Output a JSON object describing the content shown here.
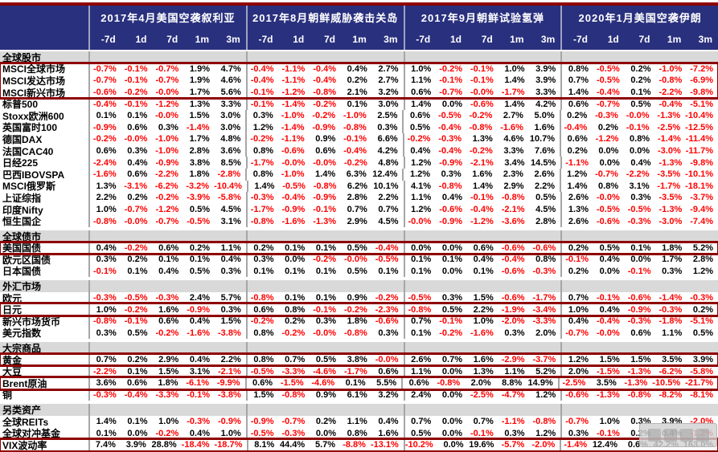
{
  "colors": {
    "header_bg": "#29307e",
    "header_text": "#ffffff",
    "highlight_border": "#8e0000",
    "top_bar": "#8e0000",
    "negative_value": "#ff0000",
    "positive_value": "#000000",
    "section_row_bg": "#d9d9d9",
    "group_separator": "#a6a6a6"
  },
  "chart_data": {
    "type": "table",
    "legend_note": "negative values shown in red, positive in black; dark-red boxes highlight key assets",
    "events": [
      "2017年4月美国空袭叙利亚",
      "2017年8月朝鲜威胁袭击关岛",
      "2017年9月朝鲜试验氢弹",
      "2020年1月美国空袭伊朗"
    ],
    "periods": [
      "-7d",
      "1d",
      "7d",
      "1m",
      "3m"
    ],
    "sections": [
      {
        "name": "全球股市",
        "rows": [
          {
            "label": "MSCI全球市场",
            "highlight": true,
            "values": [
              "-0.7%",
              "-0.1%",
              "-0.7%",
              "1.9%",
              "4.7%",
              "-0.4%",
              "-1.1%",
              "-0.4%",
              "0.4%",
              "2.7%",
              "1.0%",
              "-0.2%",
              "-0.1%",
              "1.0%",
              "3.9%",
              "0.8%",
              "-0.5%",
              "0.2%",
              "-1.0%",
              "-7.2%"
            ]
          },
          {
            "label": "MSCI发达市场",
            "highlight": true,
            "values": [
              "-0.7%",
              "-0.1%",
              "-0.7%",
              "1.9%",
              "4.6%",
              "-0.4%",
              "-1.1%",
              "-0.4%",
              "0.2%",
              "2.7%",
              "1.1%",
              "-0.1%",
              "-0.1%",
              "1.4%",
              "3.9%",
              "0.7%",
              "-0.5%",
              "0.2%",
              "-0.8%",
              "-6.9%"
            ]
          },
          {
            "label": "MSCI新兴市场",
            "highlight": true,
            "values": [
              "-0.6%",
              "-0.2%",
              "-0.0%",
              "1.7%",
              "5.6%",
              "-0.1%",
              "-1.2%",
              "-0.8%",
              "2.1%",
              "3.2%",
              "0.6%",
              "-0.7%",
              "-0.0%",
              "-1.7%",
              "3.3%",
              "1.4%",
              "-0.4%",
              "0.1%",
              "-2.2%",
              "-9.8%"
            ]
          },
          {
            "label": "标普500",
            "highlight": false,
            "values": [
              "-0.4%",
              "-0.1%",
              "-1.2%",
              "1.3%",
              "3.3%",
              "-0.1%",
              "-1.4%",
              "-0.2%",
              "0.1%",
              "3.0%",
              "1.4%",
              "0.0%",
              "-0.6%",
              "1.4%",
              "4.2%",
              "0.6%",
              "-0.7%",
              "0.5%",
              "-0.4%",
              "-5.1%"
            ]
          },
          {
            "label": "Stoxx欧洲600",
            "highlight": false,
            "values": [
              "0.1%",
              "0.1%",
              "-0.0%",
              "1.5%",
              "3.0%",
              "0.3%",
              "-1.0%",
              "-0.2%",
              "-1.0%",
              "2.5%",
              "0.6%",
              "-0.5%",
              "-0.2%",
              "2.7%",
              "5.0%",
              "0.2%",
              "-0.3%",
              "-0.0%",
              "-1.3%",
              "-10.4%"
            ]
          },
          {
            "label": "英国富时100",
            "highlight": false,
            "values": [
              "-0.9%",
              "0.6%",
              "0.3%",
              "-1.4%",
              "3.0%",
              "1.2%",
              "-1.4%",
              "-0.9%",
              "-0.8%",
              "0.3%",
              "0.5%",
              "-0.4%",
              "-0.8%",
              "-1.6%",
              "1.6%",
              "-0.4%",
              "0.2%",
              "-0.1%",
              "-2.5%",
              "-12.5%"
            ]
          },
          {
            "label": "德国DAX",
            "highlight": false,
            "values": [
              "-0.2%",
              "-0.0%",
              "-1.0%",
              "1.7%",
              "4.8%",
              "-0.2%",
              "-1.1%",
              "0.9%",
              "-0.1%",
              "6.6%",
              "-0.2%",
              "-0.3%",
              "1.3%",
              "4.6%",
              "10.7%",
              "0.6%",
              "-1.2%",
              "0.8%",
              "-1.4%",
              "-11.4%"
            ]
          },
          {
            "label": "法国CAC40",
            "highlight": false,
            "values": [
              "0.6%",
              "0.3%",
              "-1.0%",
              "2.8%",
              "3.6%",
              "0.8%",
              "-0.6%",
              "0.6%",
              "-0.4%",
              "4.2%",
              "0.4%",
              "-0.4%",
              "-0.2%",
              "3.3%",
              "7.6%",
              "0.2%",
              "0.0%",
              "0.0%",
              "-3.0%",
              "-11.7%"
            ]
          },
          {
            "label": "日经225",
            "highlight": false,
            "values": [
              "-2.4%",
              "0.4%",
              "-0.9%",
              "3.8%",
              "8.5%",
              "-1.7%",
              "-0.0%",
              "-0.0%",
              "-0.2%",
              "4.8%",
              "1.2%",
              "-0.9%",
              "-2.1%",
              "3.4%",
              "14.5%",
              "-1.1%",
              "0.0%",
              "0.4%",
              "-1.3%",
              "-9.8%"
            ]
          },
          {
            "label": "巴西IBOVSPA",
            "highlight": false,
            "values": [
              "-1.6%",
              "0.6%",
              "-2.2%",
              "1.8%",
              "-2.8%",
              "0.8%",
              "-1.0%",
              "1.4%",
              "6.3%",
              "12.4%",
              "1.2%",
              "0.3%",
              "1.6%",
              "2.3%",
              "2.6%",
              "1.2%",
              "-0.7%",
              "-2.2%",
              "-3.5%",
              "-10.1%"
            ]
          },
          {
            "label": "MSCI俄罗斯",
            "highlight": false,
            "values": [
              "1.3%",
              "-3.1%",
              "-6.2%",
              "-3.2%",
              "-10.4%",
              "1.4%",
              "-0.5%",
              "-0.8%",
              "6.2%",
              "10.1%",
              "4.1%",
              "-0.8%",
              "1.4%",
              "2.9%",
              "2.2%",
              "1.4%",
              "0.8%",
              "3.1%",
              "-1.7%",
              "-18.1%"
            ]
          },
          {
            "label": "上证综指",
            "highlight": false,
            "values": [
              "2.2%",
              "0.2%",
              "-0.2%",
              "-3.9%",
              "-5.8%",
              "-0.3%",
              "-0.4%",
              "-0.9%",
              "2.8%",
              "2.2%",
              "1.1%",
              "0.4%",
              "-0.1%",
              "-0.8%",
              "0.5%",
              "2.6%",
              "-0.0%",
              "0.3%",
              "-3.5%",
              "-3.7%"
            ]
          },
          {
            "label": "印度Nifty",
            "highlight": false,
            "values": [
              "1.0%",
              "-0.7%",
              "-1.2%",
              "0.5%",
              "4.5%",
              "-1.7%",
              "-0.9%",
              "-0.1%",
              "0.7%",
              "0.7%",
              "1.2%",
              "-0.6%",
              "-0.4%",
              "-2.1%",
              "4.5%",
              "1.3%",
              "-0.5%",
              "-0.5%",
              "-1.3%",
              "-9.4%"
            ]
          },
          {
            "label": "恒生国企",
            "highlight": false,
            "values": [
              "-0.8%",
              "-0.0%",
              "-0.7%",
              "-0.5%",
              "3.1%",
              "-0.8%",
              "-1.6%",
              "-1.3%",
              "2.9%",
              "4.5%",
              "-0.0%",
              "-0.9%",
              "-1.2%",
              "-3.6%",
              "2.8%",
              "2.6%",
              "-0.6%",
              "-0.3%",
              "-3.0%",
              "-7.4%"
            ]
          }
        ]
      },
      {
        "name": "全球债市",
        "rows": [
          {
            "label": "美国国债",
            "highlight": true,
            "values": [
              "0.4%",
              "-0.2%",
              "0.6%",
              "0.2%",
              "1.1%",
              "0.2%",
              "0.1%",
              "0.1%",
              "0.5%",
              "-0.4%",
              "0.0%",
              "0.0%",
              "0.6%",
              "-0.6%",
              "-0.6%",
              "0.2%",
              "0.5%",
              "0.1%",
              "1.8%",
              "5.2%"
            ]
          },
          {
            "label": "欧元区国债",
            "highlight": false,
            "values": [
              "0.3%",
              "0.2%",
              "0.1%",
              "0.1%",
              "0.4%",
              "0.3%",
              "0.0%",
              "-0.2%",
              "-0.0%",
              "-0.5%",
              "0.1%",
              "0.1%",
              "0.4%",
              "-0.4%",
              "0.8%",
              "-0.1%",
              "0.4%",
              "0.0%",
              "1.7%",
              "2.8%"
            ]
          },
          {
            "label": "日本国债",
            "highlight": false,
            "values": [
              "-0.1%",
              "0.1%",
              "0.4%",
              "0.5%",
              "0.3%",
              "0.1%",
              "0.1%",
              "0.1%",
              "0.5%",
              "0.1%",
              "0.1%",
              "0.0%",
              "0.1%",
              "-0.6%",
              "-0.3%",
              "0.2%",
              "0.0%",
              "-0.1%",
              "0.3%",
              "1.2%"
            ]
          }
        ]
      },
      {
        "name": "外汇市场",
        "rows": [
          {
            "label": "欧元",
            "highlight": false,
            "values": [
              "-0.3%",
              "-0.5%",
              "-0.3%",
              "2.4%",
              "5.7%",
              "-0.8%",
              "0.1%",
              "0.1%",
              "0.9%",
              "-0.2%",
              "-0.5%",
              "0.3%",
              "1.5%",
              "-0.6%",
              "-1.7%",
              "0.7%",
              "-0.1%",
              "-0.6%",
              "-1.4%",
              "-0.3%"
            ]
          },
          {
            "label": "日元",
            "highlight": true,
            "values": [
              "1.0%",
              "-0.2%",
              "1.6%",
              "-0.9%",
              "0.3%",
              "0.6%",
              "0.8%",
              "-0.1%",
              "-0.2%",
              "-2.3%",
              "-0.8%",
              "0.5%",
              "2.2%",
              "-1.9%",
              "-3.4%",
              "1.0%",
              "0.4%",
              "-0.9%",
              "-0.3%",
              "0.2%"
            ]
          },
          {
            "label": "新兴市场货币",
            "highlight": false,
            "values": [
              "-0.8%",
              "-0.1%",
              "0.6%",
              "0.4%",
              "1.5%",
              "-0.2%",
              "0.2%",
              "0.3%",
              "1.8%",
              "-0.6%",
              "0.7%",
              "-0.1%",
              "1.0%",
              "-2.0%",
              "-3.3%",
              "0.4%",
              "-0.4%",
              "-0.3%",
              "-1.8%",
              "-5.1%"
            ]
          },
          {
            "label": "美元指数",
            "highlight": false,
            "values": [
              "0.3%",
              "0.5%",
              "-0.2%",
              "-1.6%",
              "-3.8%",
              "0.8%",
              "-0.2%",
              "-0.0%",
              "-0.8%",
              "0.3%",
              "0.1%",
              "-0.2%",
              "-1.6%",
              "0.3%",
              "2.0%",
              "-0.7%",
              "-0.0%",
              "0.6%",
              "1.1%",
              "0.5%"
            ]
          }
        ]
      },
      {
        "name": "大宗商品",
        "rows": [
          {
            "label": "黄金",
            "highlight": true,
            "values": [
              "0.7%",
              "0.2%",
              "2.9%",
              "0.4%",
              "2.2%",
              "0.8%",
              "0.7%",
              "0.5%",
              "3.8%",
              "-0.0%",
              "2.6%",
              "0.7%",
              "1.6%",
              "-2.9%",
              "-3.7%",
              "1.2%",
              "1.5%",
              "1.5%",
              "3.5%",
              "3.9%"
            ]
          },
          {
            "label": "大豆",
            "highlight": false,
            "values": [
              "-2.2%",
              "0.1%",
              "1.5%",
              "3.1%",
              "-2.1%",
              "-0.5%",
              "-3.3%",
              "-4.6%",
              "-1.7%",
              "0.6%",
              "1.1%",
              "0.0%",
              "1.3%",
              "1.1%",
              "5.2%",
              "2.0%",
              "-1.5%",
              "-1.3%",
              "-6.2%",
              "-5.8%"
            ]
          },
          {
            "label": "Brent原油",
            "highlight": true,
            "values": [
              "3.6%",
              "0.6%",
              "1.8%",
              "-6.1%",
              "-9.9%",
              "0.6%",
              "-1.5%",
              "-4.6%",
              "0.1%",
              "5.5%",
              "0.6%",
              "-0.8%",
              "2.0%",
              "8.8%",
              "14.9%",
              "-2.5%",
              "3.5%",
              "-1.3%",
              "-10.5%",
              "-21.7%"
            ]
          },
          {
            "label": "铜",
            "highlight": false,
            "values": [
              "-0.3%",
              "-0.4%",
              "-3.3%",
              "-0.1%",
              "-3.8%",
              "1.5%",
              "-0.8%",
              "0.9%",
              "6.1%",
              "3.2%",
              "2.4%",
              "0.0%",
              "-2.5%",
              "-4.7%",
              "1.2%",
              "-0.6%",
              "-1.3%",
              "-0.8%",
              "-8.2%",
              "-8.1%"
            ]
          }
        ]
      },
      {
        "name": "另类资产",
        "rows": [
          {
            "label": "全球REITs",
            "highlight": false,
            "values": [
              "1.4%",
              "0.1%",
              "1.0%",
              "-0.3%",
              "-0.9%",
              "-0.9%",
              "-0.7%",
              "0.2%",
              "1.1%",
              "0.4%",
              "0.7%",
              "0.0%",
              "0.7%",
              "-1.1%",
              "-0.8%",
              "-0.7%",
              "1.0%",
              "0.3%",
              "3.9%",
              "-2.0%"
            ]
          },
          {
            "label": "全球对冲基金",
            "highlight": false,
            "values": [
              "0.1%",
              "0.0%",
              "-0.2%",
              "0.4%",
              "1.0%",
              "-0.5%",
              "-0.3%",
              "0.0%",
              "0.8%",
              "1.6%",
              "0.5%",
              "0.0%",
              "-0.1%",
              "0.3%",
              "1.2%",
              "0.3%",
              "-0.1%",
              "0.2%",
              "0.4%",
              "-1.2%"
            ]
          },
          {
            "label": "VIX波动率",
            "highlight": true,
            "values": [
              "7.4%",
              "3.9%",
              "28.8%",
              "-18.4%",
              "-18.7%",
              "8.1%",
              "44.4%",
              "5.7%",
              "-8.8%",
              "-13.1%",
              "-10.2%",
              "0.0%",
              "19.6%",
              "-5.7%",
              "-2.0%",
              "-1.4%",
              "12.4%",
              "0.6%",
              "42.2%",
              "163.0%"
            ]
          }
        ]
      }
    ]
  }
}
